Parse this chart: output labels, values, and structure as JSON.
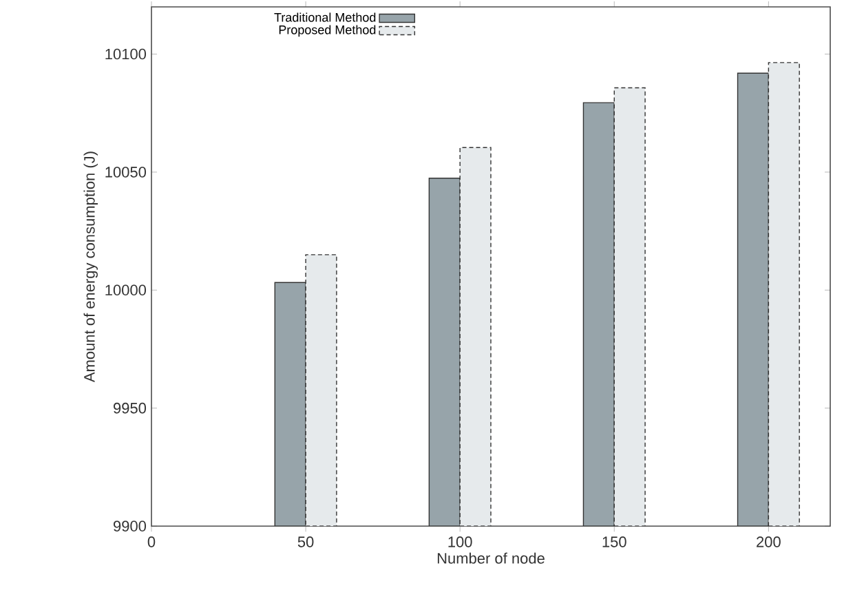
{
  "chart_data": {
    "type": "bar",
    "xlabel": "Number of node",
    "ylabel": "Amount of energy consumption (J)",
    "x": [
      50,
      100,
      150,
      200
    ],
    "series": [
      {
        "name": "Traditional Method",
        "color": "#97a4aa",
        "line_style": "solid",
        "values": [
          10003.2,
          10047.4,
          10079.4,
          10091.9
        ]
      },
      {
        "name": "Proposed Method",
        "color": "#e6eaec",
        "line_style": "dashed",
        "values": [
          10015,
          10060.4,
          10085.7,
          10096.4
        ]
      }
    ],
    "xlim": [
      0,
      220
    ],
    "xticks": [
      0,
      50,
      100,
      150,
      200
    ],
    "ylim": [
      9900,
      10120
    ],
    "yticks": [
      9900,
      9950,
      10000,
      10050,
      10100
    ],
    "grid": false,
    "legend": "top left"
  }
}
